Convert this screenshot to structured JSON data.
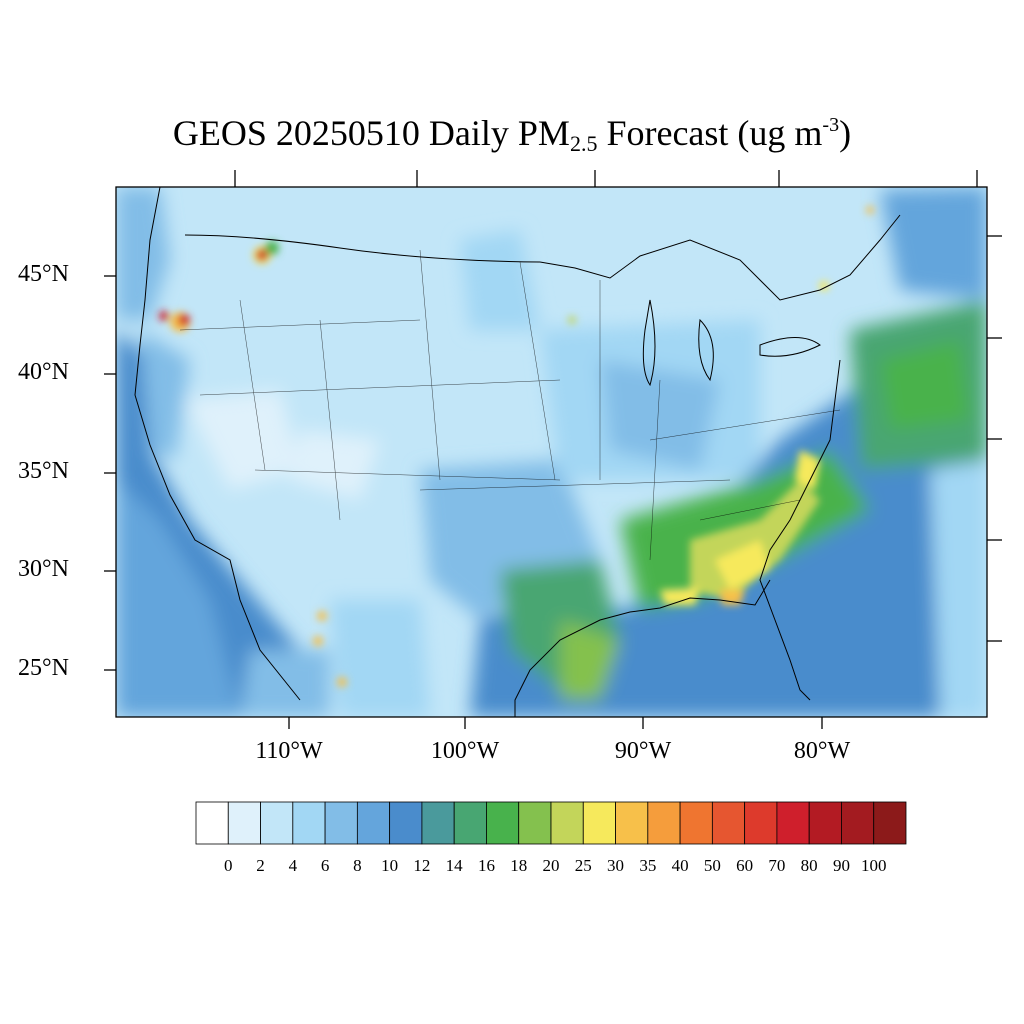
{
  "title": {
    "prefix": "GEOS 20250510 Daily PM",
    "subscript": "2.5",
    "middle": " Forecast (ug m",
    "superscript": "-3",
    "suffix": ")"
  },
  "lat_labels": [
    "45°N",
    "40°N",
    "35°N",
    "30°N",
    "25°N"
  ],
  "lon_labels": [
    "110°W",
    "100°W",
    "90°W",
    "80°W"
  ],
  "colorbar": {
    "levels": [
      "0",
      "2",
      "4",
      "6",
      "8",
      "10",
      "12",
      "14",
      "16",
      "18",
      "20",
      "25",
      "30",
      "35",
      "40",
      "50",
      "60",
      "70",
      "80",
      "90",
      "100"
    ],
    "colors": [
      "#ffffff",
      "#dff1fb",
      "#c2e6f8",
      "#a2d7f4",
      "#82bde7",
      "#64a5dc",
      "#4a8ccc",
      "#4a9a9c",
      "#48a672",
      "#48b24c",
      "#84c14e",
      "#c3d55a",
      "#f6e95c",
      "#f7c04a",
      "#f59d3c",
      "#ef7530",
      "#e65630",
      "#dd3a2c",
      "#cf1f2c",
      "#b31b23",
      "#a31b20",
      "#8c1a1a"
    ]
  }
}
